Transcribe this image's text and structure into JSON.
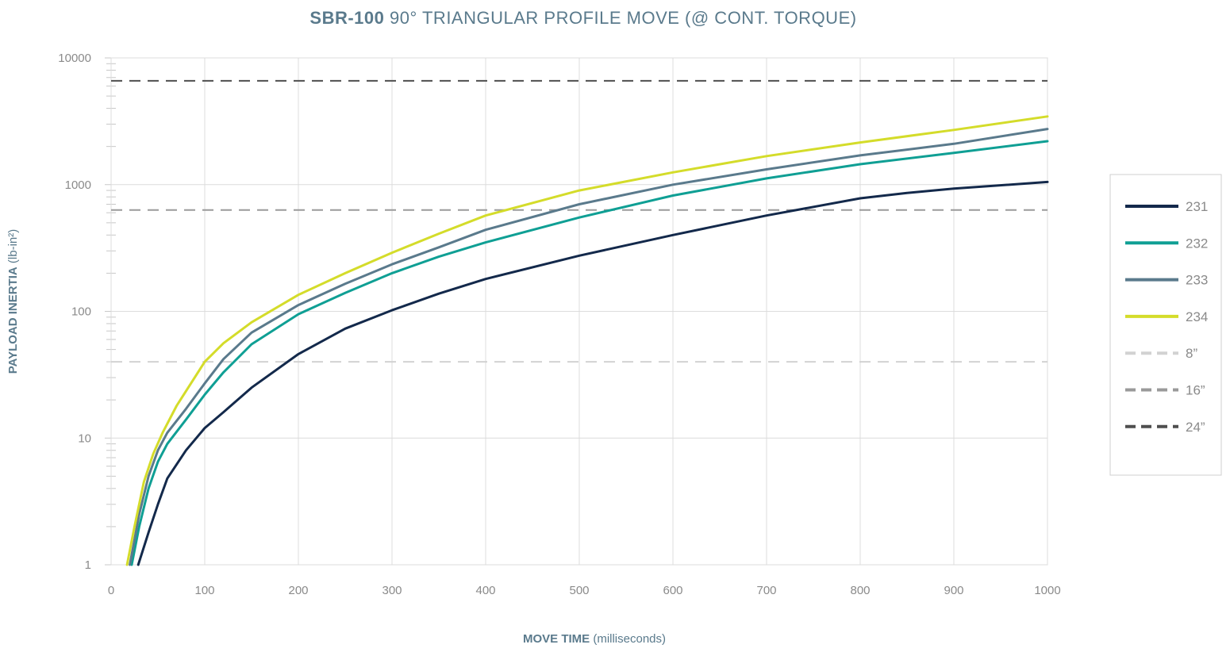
{
  "chart_data": {
    "type": "line",
    "title_bold": "SBR-100",
    "title_rest": " 90° TRIANGULAR PROFILE MOVE (@ CONT. TORQUE)",
    "xlabel_bold": "MOVE TIME",
    "xlabel_rest": " (milliseconds)",
    "ylabel_bold": "PAYLOAD INERTIA",
    "ylabel_rest": " (lb-in²)",
    "xlim": [
      0,
      1000
    ],
    "ylim": [
      1,
      10000
    ],
    "yscale": "log",
    "grid": true,
    "legend_position": "right",
    "x_ticks": [
      "0",
      "100",
      "200",
      "300",
      "400",
      "500",
      "600",
      "700",
      "800",
      "900",
      "1000"
    ],
    "y_ticks": [
      {
        "value": 1,
        "label": "1"
      },
      {
        "value": 10,
        "label": "10"
      },
      {
        "value": 100,
        "label": "100"
      },
      {
        "value": 1000,
        "label": "1000"
      },
      {
        "value": 10000,
        "label": "10000"
      }
    ],
    "series": [
      {
        "name": "231",
        "color": "#13294b",
        "style": "solid",
        "points": [
          [
            29,
            1
          ],
          [
            40,
            1.8
          ],
          [
            50,
            3
          ],
          [
            60,
            4.8
          ],
          [
            80,
            8
          ],
          [
            100,
            12
          ],
          [
            120,
            16
          ],
          [
            150,
            25
          ],
          [
            200,
            46
          ],
          [
            250,
            73
          ],
          [
            300,
            102
          ],
          [
            350,
            138
          ],
          [
            400,
            180
          ],
          [
            500,
            275
          ],
          [
            600,
            400
          ],
          [
            700,
            570
          ],
          [
            800,
            780
          ],
          [
            850,
            860
          ],
          [
            900,
            930
          ],
          [
            1000,
            1050
          ]
        ]
      },
      {
        "name": "232",
        "color": "#0f9f94",
        "style": "solid",
        "points": [
          [
            22,
            1
          ],
          [
            30,
            2
          ],
          [
            40,
            4
          ],
          [
            50,
            6.5
          ],
          [
            60,
            9
          ],
          [
            80,
            14
          ],
          [
            100,
            22
          ],
          [
            120,
            33
          ],
          [
            150,
            55
          ],
          [
            200,
            95
          ],
          [
            250,
            140
          ],
          [
            300,
            200
          ],
          [
            350,
            270
          ],
          [
            400,
            350
          ],
          [
            500,
            550
          ],
          [
            600,
            820
          ],
          [
            700,
            1120
          ],
          [
            800,
            1450
          ],
          [
            900,
            1780
          ],
          [
            1000,
            2200
          ]
        ]
      },
      {
        "name": "233",
        "color": "#5a7a8c",
        "style": "solid",
        "points": [
          [
            20,
            1
          ],
          [
            30,
            2.5
          ],
          [
            40,
            5
          ],
          [
            50,
            8
          ],
          [
            60,
            11
          ],
          [
            80,
            17
          ],
          [
            100,
            27
          ],
          [
            120,
            42
          ],
          [
            150,
            68
          ],
          [
            200,
            112
          ],
          [
            250,
            165
          ],
          [
            300,
            235
          ],
          [
            350,
            320
          ],
          [
            400,
            440
          ],
          [
            500,
            700
          ],
          [
            600,
            1000
          ],
          [
            700,
            1320
          ],
          [
            800,
            1700
          ],
          [
            900,
            2100
          ],
          [
            1000,
            2750
          ]
        ]
      },
      {
        "name": "234",
        "color": "#d4dc2a",
        "style": "solid",
        "points": [
          [
            17,
            1
          ],
          [
            25,
            2
          ],
          [
            35,
            4.5
          ],
          [
            45,
            7.5
          ],
          [
            55,
            11
          ],
          [
            70,
            18
          ],
          [
            100,
            40
          ],
          [
            120,
            56
          ],
          [
            150,
            82
          ],
          [
            200,
            135
          ],
          [
            250,
            200
          ],
          [
            300,
            290
          ],
          [
            350,
            410
          ],
          [
            400,
            570
          ],
          [
            500,
            900
          ],
          [
            600,
            1250
          ],
          [
            700,
            1680
          ],
          [
            800,
            2150
          ],
          [
            900,
            2700
          ],
          [
            1000,
            3450
          ]
        ]
      },
      {
        "name": "8”",
        "color": "#d2d2d2",
        "style": "dashed",
        "y": 40
      },
      {
        "name": "16”",
        "color": "#9a9a9a",
        "style": "dashed",
        "y": 630
      },
      {
        "name": "24”",
        "color": "#4f4f4f",
        "style": "dashed",
        "y": 6600
      }
    ]
  }
}
